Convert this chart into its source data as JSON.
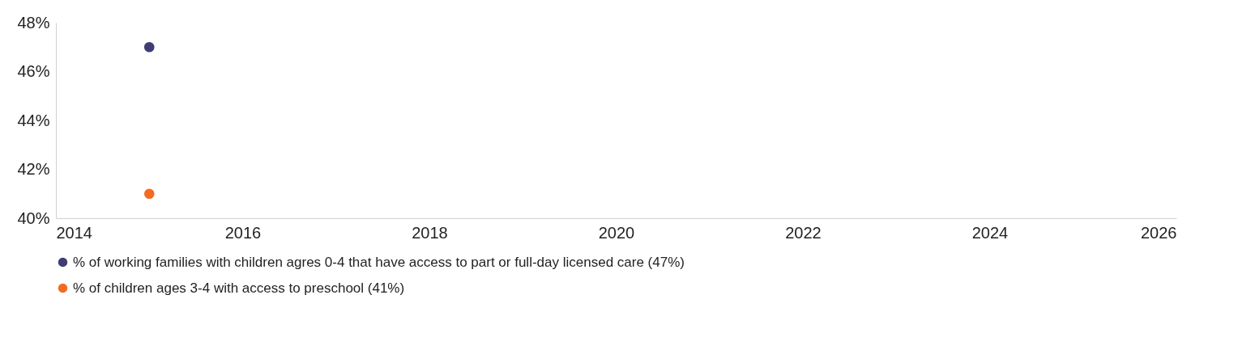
{
  "chart_data": {
    "type": "scatter",
    "x": [
      2015
    ],
    "series": [
      {
        "name": "% of working families with children agres 0-4 that have access to part or full-day licensed care (47%)",
        "color": "#3f3d73",
        "values": [
          47
        ]
      },
      {
        "name": "% of children ages 3-4 with access to preschool (41%)",
        "color": "#f26b21",
        "values": [
          41
        ]
      }
    ],
    "xlim": [
      2014,
      2026
    ],
    "xticks": [
      2014,
      2016,
      2018,
      2020,
      2022,
      2024,
      2026
    ],
    "ylim": [
      40,
      48
    ],
    "yticks": [
      {
        "value": 40,
        "label": "40%"
      },
      {
        "value": 42,
        "label": "42%"
      },
      {
        "value": 44,
        "label": "44%"
      },
      {
        "value": 46,
        "label": "46%"
      },
      {
        "value": 48,
        "label": "48%"
      }
    ],
    "grid": false,
    "legend": "bottom",
    "marker": "circle"
  }
}
